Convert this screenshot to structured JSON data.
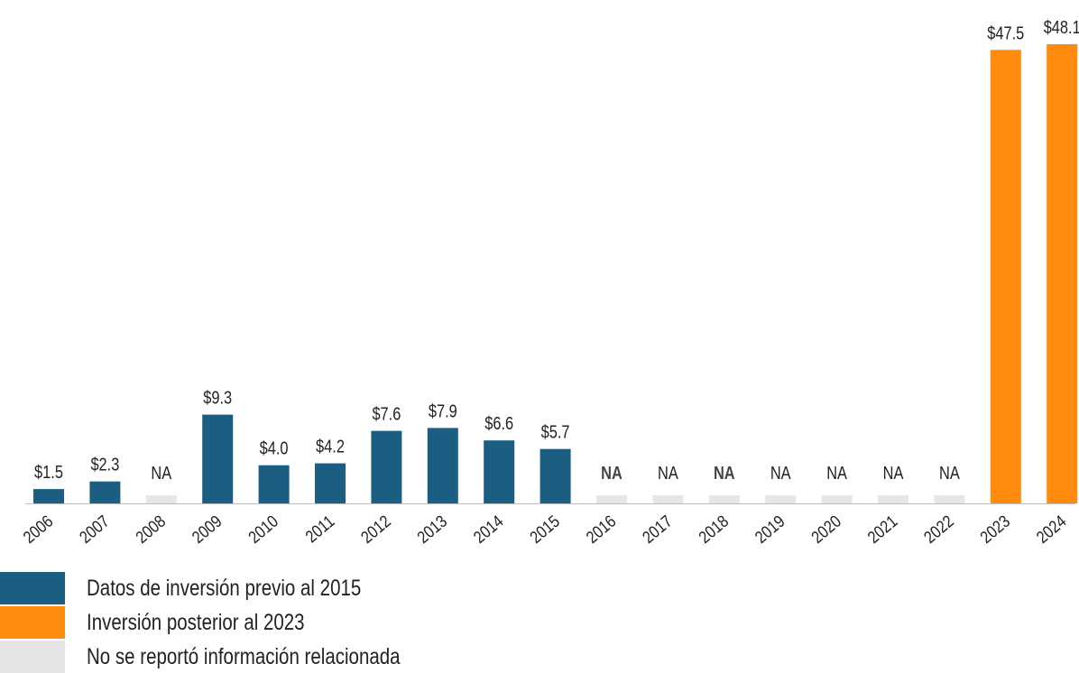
{
  "chart_data": {
    "type": "bar",
    "categories": [
      "2006",
      "2007",
      "2008",
      "2009",
      "2010",
      "2011",
      "2012",
      "2013",
      "2014",
      "2015",
      "2016",
      "2017",
      "2018",
      "2019",
      "2020",
      "2021",
      "2022",
      "2023",
      "2024"
    ],
    "values": [
      1.5,
      2.3,
      null,
      9.3,
      4.0,
      4.2,
      7.6,
      7.9,
      6.6,
      5.7,
      null,
      null,
      null,
      null,
      null,
      null,
      null,
      47.5,
      48.1
    ],
    "labels": [
      "$1.5",
      "$2.3",
      "NA",
      "$9.3",
      "$4.0",
      "$4.2",
      "$7.6",
      "$7.9",
      "$6.6",
      "$5.7",
      "NA",
      "NA",
      "NA",
      "NA",
      "NA",
      "NA",
      "NA",
      "$47.5",
      "$48.1"
    ],
    "label_bold": [
      false,
      false,
      false,
      false,
      false,
      false,
      false,
      false,
      false,
      false,
      true,
      false,
      true,
      false,
      false,
      false,
      false,
      false,
      false
    ],
    "groups": [
      "pre",
      "pre",
      "na",
      "pre",
      "pre",
      "pre",
      "pre",
      "pre",
      "pre",
      "pre",
      "na",
      "na",
      "na",
      "na",
      "na",
      "na",
      "na",
      "post",
      "post"
    ],
    "ylim": [
      0,
      48.1
    ],
    "grid": false
  },
  "legend": [
    {
      "key": "pre",
      "label": "Datos de inversión previo al 2015",
      "color": "#1b5e82"
    },
    {
      "key": "post",
      "label": "Inversión posterior al 2023",
      "color": "#ff8b0f"
    },
    {
      "key": "na",
      "label": "No se reportó información relacionada",
      "color": "#e6e6e6"
    }
  ],
  "colors": {
    "pre": "#1b5e82",
    "post": "#ff8b0f",
    "na": "#e6e6e6",
    "text": "#222222",
    "axis": "#bfbfbf"
  }
}
